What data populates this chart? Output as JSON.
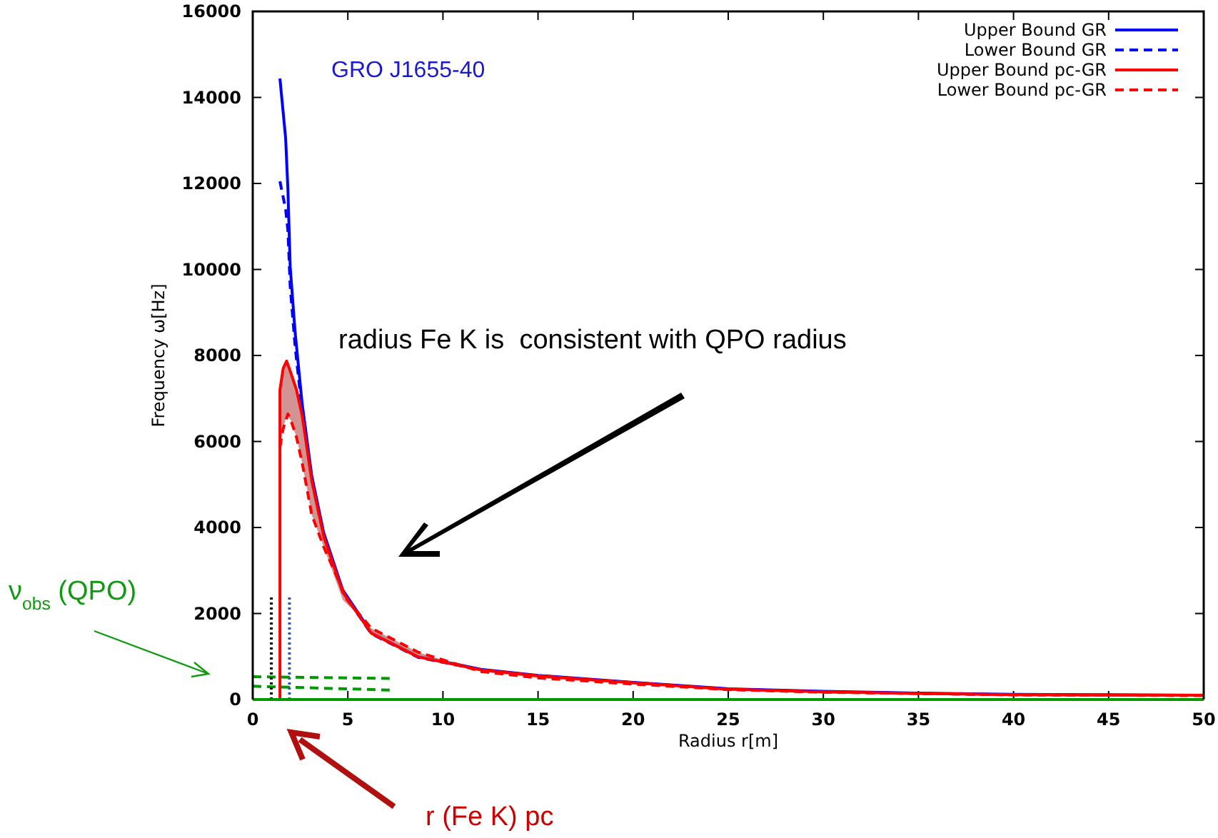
{
  "chart_data": {
    "type": "line",
    "xlabel": "Radius r[m]",
    "ylabel": "Frequency ω[Hz]",
    "xlim": [
      0,
      50
    ],
    "ylim": [
      0,
      16000
    ],
    "xticks": [
      0,
      5,
      10,
      15,
      20,
      25,
      30,
      35,
      40,
      45,
      50
    ],
    "yticks": [
      0,
      2000,
      4000,
      6000,
      8000,
      10000,
      12000,
      14000,
      16000
    ],
    "grid": false,
    "legend": "top right",
    "marker": "none",
    "series": [
      {
        "name": "Upper Bound GR",
        "color": "#0000ff",
        "line_style": "solid",
        "x": [
          1.43,
          1.73,
          1.85,
          1.97,
          2.23,
          2.6,
          3.1,
          3.73,
          4.73,
          6.23,
          8.7,
          12,
          15,
          20,
          25,
          30,
          35,
          40,
          45,
          50
        ],
        "values": [
          14440,
          13050,
          11850,
          10060,
          8530,
          6870,
          5210,
          3880,
          2550,
          1560,
          1000,
          700,
          560,
          400,
          250,
          190,
          150,
          120,
          110,
          100
        ]
      },
      {
        "name": "Lower Bound GR",
        "color": "#0000ff",
        "line_style": "dashed",
        "x": [
          1.43,
          1.73,
          1.85,
          1.97,
          2.23,
          2.6,
          3.1,
          3.73,
          4.73,
          6.23,
          8.7,
          12,
          15,
          20,
          25,
          30,
          35,
          40,
          45,
          50
        ],
        "values": [
          12050,
          11400,
          10900,
          9600,
          8200,
          6700,
          5100,
          3800,
          2500,
          1530,
          980,
          690,
          550,
          390,
          240,
          180,
          140,
          110,
          100,
          100
        ]
      },
      {
        "name": "Upper Bound pc-GR",
        "color": "#ff0000",
        "line_style": "solid",
        "x": [
          1.43,
          1.43,
          1.6,
          1.78,
          2.0,
          2.3,
          2.6,
          3.1,
          3.73,
          4.73,
          6.23,
          8.7,
          12,
          15,
          20,
          25,
          30,
          35,
          40,
          45,
          50
        ],
        "values": [
          0,
          7200,
          7700,
          7870,
          7600,
          7200,
          6600,
          5100,
          3800,
          2500,
          1540,
          990,
          690,
          550,
          390,
          240,
          180,
          140,
          110,
          100,
          100
        ],
        "lower": [
          0,
          5870,
          6300,
          6600,
          6500,
          6100,
          5500,
          4300,
          3550,
          2320,
          1660,
          1100,
          650,
          500,
          360,
          230,
          170,
          140,
          110,
          100,
          90
        ],
        "upper": [
          0,
          7200,
          7700,
          7870,
          7600,
          7200,
          6600,
          5100,
          3800,
          2500,
          1540,
          990,
          690,
          550,
          390,
          240,
          180,
          140,
          110,
          100,
          100
        ]
      },
      {
        "name": "Lower Bound pc-GR",
        "color": "#ff0000",
        "line_style": "dashed",
        "x": [
          1.43,
          1.6,
          1.85,
          2.0,
          2.3,
          2.6,
          3.1,
          3.73,
          4.96,
          6.23,
          8.7,
          12,
          15,
          20,
          25,
          30,
          35,
          40,
          45,
          50
        ],
        "values": [
          5870,
          6300,
          6640,
          6500,
          6100,
          5500,
          4300,
          3550,
          2320,
          1660,
          1100,
          650,
          500,
          360,
          230,
          170,
          140,
          110,
          100,
          90
        ]
      },
      {
        "color": "#009900",
        "line_style": "dashed",
        "x": [
          0,
          7.2
        ],
        "values": [
          530,
          490
        ]
      },
      {
        "color": "#009900",
        "line_style": "dashed",
        "x": [
          0,
          7.2
        ],
        "values": [
          310,
          220
        ]
      },
      {
        "color": "#000000",
        "line_style": "dotted",
        "x": [
          0.98,
          0.98
        ],
        "values": [
          0,
          2430
        ]
      },
      {
        "color": "#3355aa",
        "line_style": "dotted",
        "x": [
          1.93,
          1.93
        ],
        "values": [
          0,
          2430
        ]
      },
      {
        "color": "#009900",
        "line_style": "solid",
        "x": [
          0,
          50
        ],
        "values": [
          0,
          0
        ]
      }
    ],
    "annotations": [
      "GRO J1655-40",
      "radius Fe K is  consistent with QPO radius",
      "ν$_{obs}$ (QPO)",
      "r (Fe K) pc"
    ]
  }
}
